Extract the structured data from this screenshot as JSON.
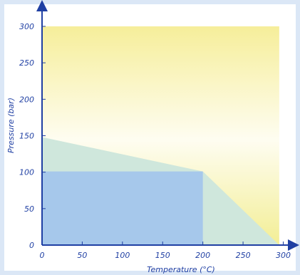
{
  "chart_data": {
    "type": "area",
    "xlabel": "Temperature (°C)",
    "ylabel": "Pressure (bar)",
    "xlim": [
      0,
      300
    ],
    "ylim": [
      0,
      310
    ],
    "xticks": [
      0,
      50,
      100,
      150,
      200,
      250,
      300
    ],
    "yticks": [
      0,
      50,
      100,
      150,
      200,
      250,
      300
    ],
    "regions": [
      {
        "kind": "rect",
        "x": [
          0,
          295
        ],
        "y": [
          0,
          300
        ],
        "fill": "gradient-yellow-to-white",
        "gradient_colors": [
          "#f6ee9a",
          "#fefdf1",
          "#f3ee95"
        ]
      },
      {
        "kind": "polygon",
        "points": [
          [
            0,
            0
          ],
          [
            0,
            148
          ],
          [
            200,
            101
          ],
          [
            295,
            0
          ]
        ],
        "fill": "#cfe7dc"
      },
      {
        "kind": "rect",
        "x": [
          0,
          200
        ],
        "y": [
          0,
          101
        ],
        "fill": "#a6c8eb"
      }
    ],
    "colors": {
      "background": "#dbe7f6",
      "plot_background": "#ffffff",
      "axis": "#1f3fa3",
      "text": "#1f3fa3"
    }
  }
}
